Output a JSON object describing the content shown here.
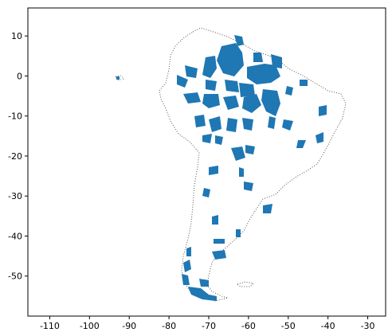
{
  "figure": {
    "kind": "map plot",
    "background": "#ffffff"
  },
  "axes": {
    "x_ticks": [
      -110,
      -100,
      -90,
      -80,
      -70,
      -60,
      -50,
      -40,
      -30
    ],
    "y_ticks": [
      10,
      0,
      -10,
      -20,
      -30,
      -40,
      -50
    ],
    "x_range": [
      -115.5,
      -25.5
    ],
    "y_range": [
      -60,
      17
    ],
    "grid": false
  },
  "layers": {
    "coastline": {
      "style": "dotted",
      "color": "#555555"
    },
    "protected_areas": {
      "color": "#1f77b4"
    }
  }
}
